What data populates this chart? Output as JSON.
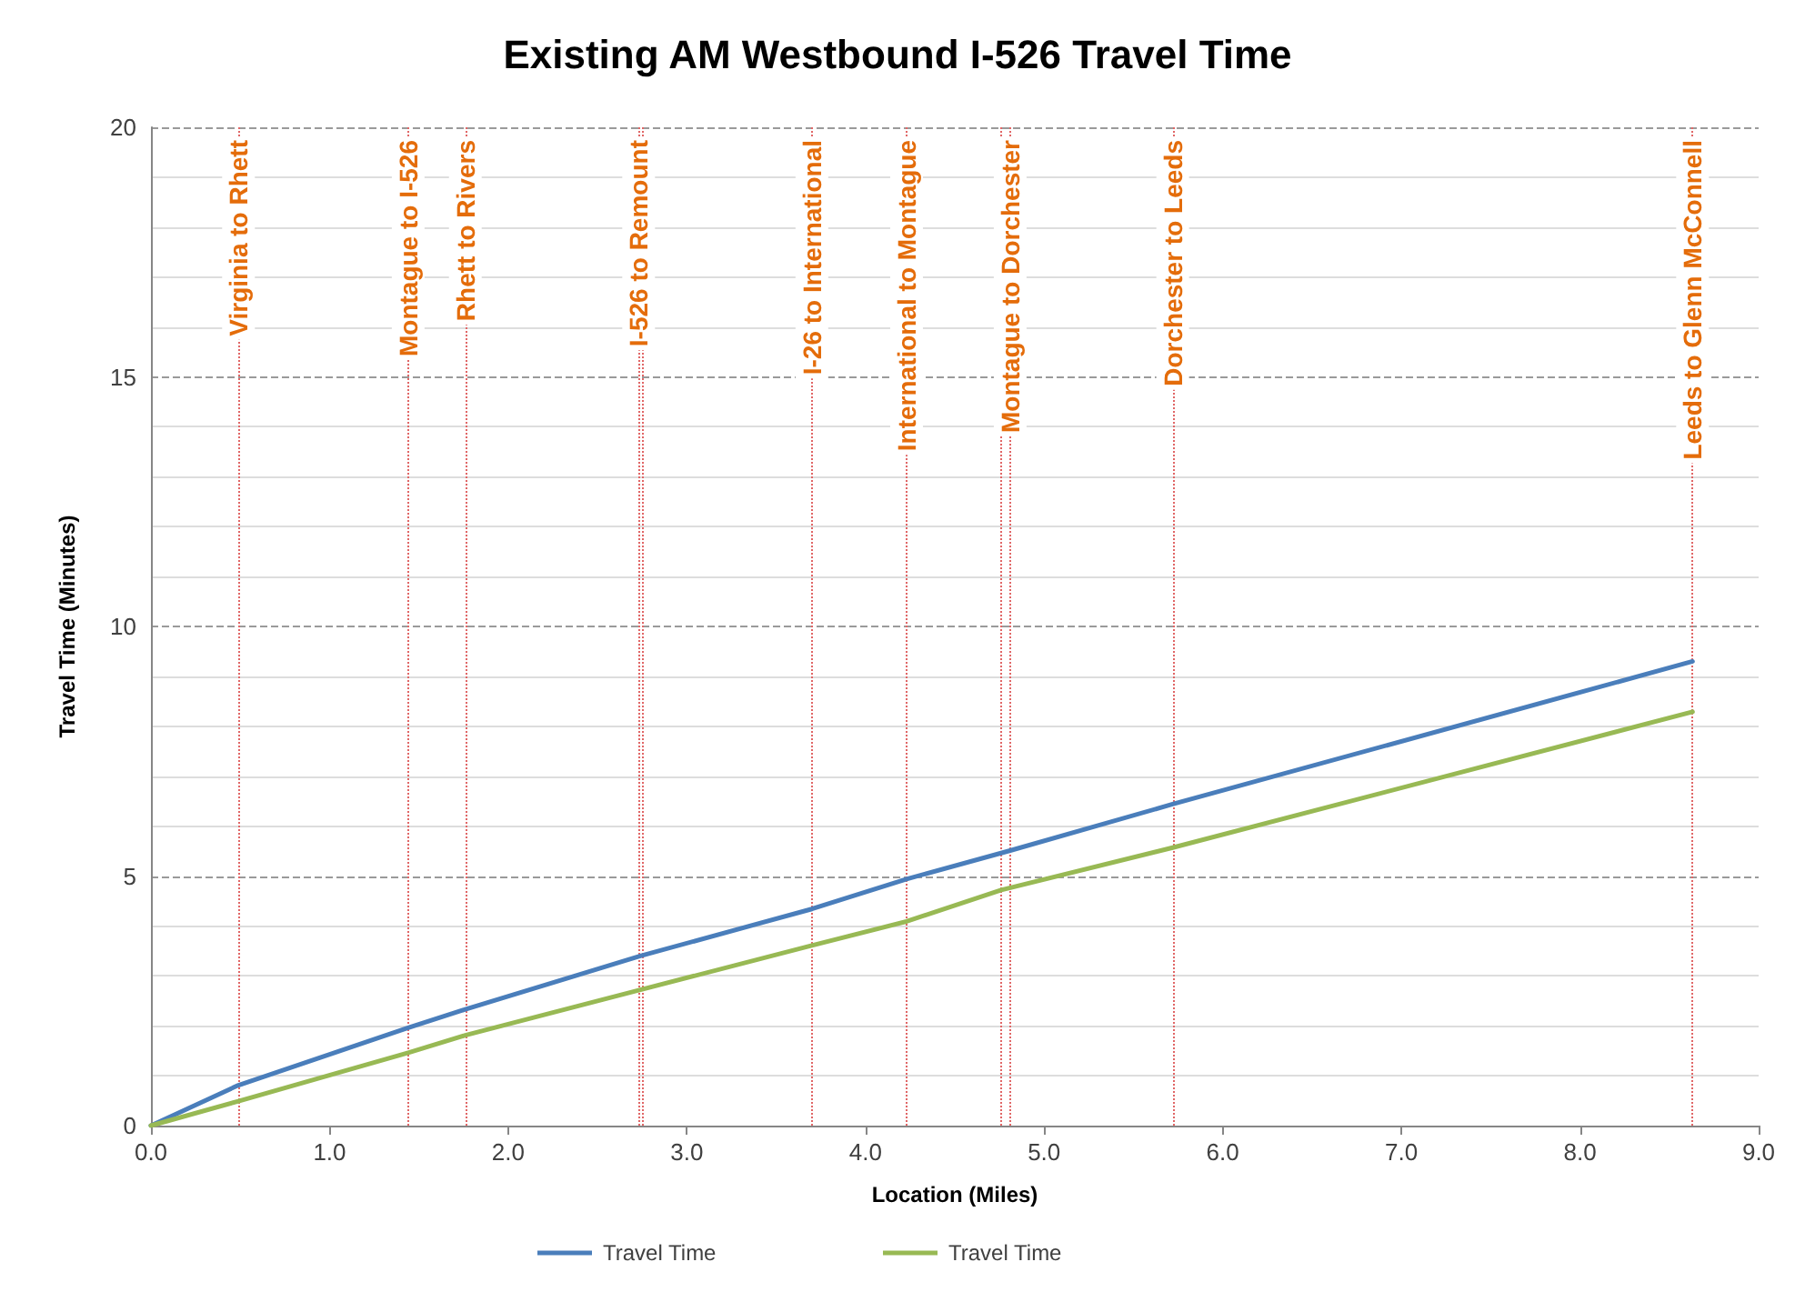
{
  "chart_data": {
    "type": "line",
    "title": "Existing AM Westbound I-526 Travel Time",
    "xlabel": "Location (Miles)",
    "ylabel": "Travel Time (Minutes)",
    "series": [
      {
        "name": "Travel Time",
        "color": "#4a7ebb",
        "x": [
          0,
          0.49,
          1.44,
          1.76,
          2.74,
          3.7,
          4.23,
          4.81,
          5.72,
          8.63
        ],
        "values": [
          0,
          0.81,
          1.96,
          2.33,
          3.4,
          4.34,
          4.94,
          5.51,
          6.44,
          9.3
        ]
      },
      {
        "name": "Travel Time",
        "color": "#98b954",
        "x": [
          0,
          0.49,
          1.44,
          1.76,
          2.74,
          3.7,
          4.23,
          4.76,
          5.72,
          8.63
        ],
        "values": [
          0,
          0.49,
          1.46,
          1.81,
          2.72,
          3.61,
          4.09,
          4.72,
          5.57,
          8.29
        ]
      }
    ],
    "xlim": [
      0,
      9
    ],
    "xticks": [
      {
        "value": 0,
        "label": "0.0"
      },
      {
        "value": 1,
        "label": "1.0"
      },
      {
        "value": 2,
        "label": "2.0"
      },
      {
        "value": 3,
        "label": "3.0"
      },
      {
        "value": 4,
        "label": "4.0"
      },
      {
        "value": 5,
        "label": "5.0"
      },
      {
        "value": 6,
        "label": "6.0"
      },
      {
        "value": 7,
        "label": "7.0"
      },
      {
        "value": 8,
        "label": "8.0"
      },
      {
        "value": 9,
        "label": "9.0"
      }
    ],
    "ylim": [
      0,
      20
    ],
    "yticks": [
      0,
      5,
      10,
      15,
      20
    ],
    "grid": "y",
    "legend": "bottom",
    "marker": "none",
    "line_style": "solid",
    "ref_lines": [
      {
        "axis": "x",
        "value": 0.49,
        "label": "Virginia to Rhett",
        "color": "#e06666",
        "line_style": "dotted"
      },
      {
        "axis": "x",
        "value": 1.44,
        "label": "Montague to I-526",
        "color": "#e06666",
        "line_style": "dotted"
      },
      {
        "axis": "x",
        "value": 1.76,
        "label": "Rhett to Rivers",
        "color": "#e06666",
        "line_style": "dotted"
      },
      {
        "axis": "x",
        "value": 2.73,
        "label": "I-526 to Remount",
        "color": "#e06666",
        "line_style": "dotted"
      },
      {
        "axis": "x",
        "value": 2.75,
        "color": "#e06666",
        "line_style": "dotted"
      },
      {
        "axis": "x",
        "value": 3.7,
        "label": "I-26 to International",
        "color": "#e06666",
        "line_style": "dotted"
      },
      {
        "axis": "x",
        "value": 4.23,
        "label": "International to Montague",
        "color": "#e06666",
        "line_style": "dotted"
      },
      {
        "axis": "x",
        "value": 4.76,
        "color": "#e06666",
        "line_style": "dotted"
      },
      {
        "axis": "x",
        "value": 4.81,
        "label": "Montague to Dorchester",
        "color": "#e06666",
        "line_style": "dotted"
      },
      {
        "axis": "x",
        "value": 5.72,
        "label": "Dorchester to Leeds",
        "color": "#e06666",
        "line_style": "dotted"
      },
      {
        "axis": "x",
        "value": 8.63,
        "label": "Leeds to Glenn McConnell",
        "color": "#e06666",
        "line_style": "dotted"
      }
    ]
  }
}
